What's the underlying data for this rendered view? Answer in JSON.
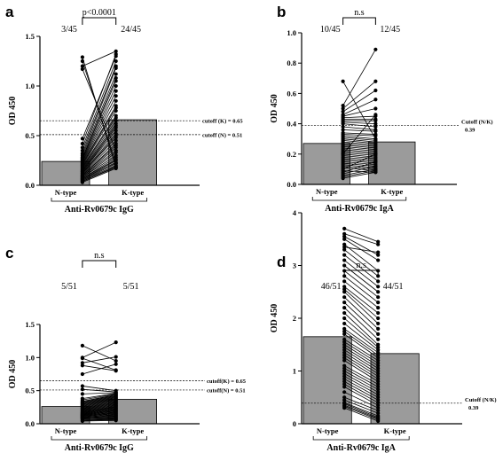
{
  "chart_data": [
    {
      "panel": "a",
      "type": "bar",
      "categories": [
        "N-type",
        "K-type"
      ],
      "values": [
        0.24,
        0.66
      ],
      "xlabel": "Anti-Rv0679c IgG",
      "ylabel": "OD 450",
      "ylim": [
        0,
        1.5
      ],
      "yticks": [
        "0.0",
        "0.5",
        "1.0",
        "1.5"
      ],
      "counts": [
        "3/45",
        "24/45"
      ],
      "significance": "p<0.0001",
      "cutoff_lines": [
        {
          "value": 0.65,
          "label": "cutoff (K) = 0.65"
        },
        {
          "value": 0.51,
          "label": "cutoff (N) = 0.51"
        }
      ],
      "pairs": [
        [
          1.29,
          0.18
        ],
        [
          1.25,
          0.22
        ],
        [
          1.2,
          1.35
        ],
        [
          1.17,
          0.35
        ],
        [
          0.47,
          1.3
        ],
        [
          0.42,
          1.32
        ],
        [
          0.38,
          1.25
        ],
        [
          0.35,
          1.2
        ],
        [
          0.32,
          1.18
        ],
        [
          0.3,
          1.12
        ],
        [
          0.28,
          1.08
        ],
        [
          0.27,
          1.05
        ],
        [
          0.26,
          1.0
        ],
        [
          0.25,
          0.95
        ],
        [
          0.24,
          0.9
        ],
        [
          0.23,
          0.85
        ],
        [
          0.22,
          0.8
        ],
        [
          0.21,
          0.78
        ],
        [
          0.2,
          0.75
        ],
        [
          0.19,
          0.7
        ],
        [
          0.18,
          0.68
        ],
        [
          0.17,
          0.65
        ],
        [
          0.16,
          0.62
        ],
        [
          0.15,
          0.6
        ],
        [
          0.14,
          0.58
        ],
        [
          0.14,
          0.55
        ],
        [
          0.13,
          0.52
        ],
        [
          0.12,
          0.5
        ],
        [
          0.12,
          0.48
        ],
        [
          0.11,
          0.45
        ],
        [
          0.1,
          0.42
        ],
        [
          0.1,
          0.4
        ],
        [
          0.09,
          0.38
        ],
        [
          0.09,
          0.35
        ],
        [
          0.08,
          0.33
        ],
        [
          0.08,
          0.3
        ],
        [
          0.07,
          0.28
        ],
        [
          0.07,
          0.26
        ],
        [
          0.06,
          0.25
        ],
        [
          0.06,
          0.23
        ],
        [
          0.05,
          0.22
        ],
        [
          0.05,
          0.2
        ],
        [
          0.04,
          0.19
        ],
        [
          0.04,
          0.18
        ],
        [
          0.03,
          0.17
        ]
      ]
    },
    {
      "panel": "b",
      "type": "bar",
      "categories": [
        "N-type",
        "K-type"
      ],
      "values": [
        0.27,
        0.28
      ],
      "xlabel": "Anti-Rv0679c IgA",
      "ylabel": "OD 450",
      "ylim": [
        0,
        1.0
      ],
      "yticks": [
        "0.0",
        "0.2",
        "0.4",
        "0.6",
        "0.8",
        "1.0"
      ],
      "counts": [
        "10/45",
        "12/45"
      ],
      "significance": "n.s",
      "cutoff_lines": [
        {
          "value": 0.39,
          "label": "Cutoff (N/K)",
          "value_label": "0.39"
        }
      ],
      "pairs": [
        [
          0.68,
          0.3
        ],
        [
          0.52,
          0.89
        ],
        [
          0.5,
          0.68
        ],
        [
          0.48,
          0.62
        ],
        [
          0.46,
          0.56
        ],
        [
          0.45,
          0.5
        ],
        [
          0.44,
          0.45
        ],
        [
          0.43,
          0.43
        ],
        [
          0.42,
          0.42
        ],
        [
          0.41,
          0.4
        ],
        [
          0.4,
          0.38
        ],
        [
          0.38,
          0.36
        ],
        [
          0.36,
          0.35
        ],
        [
          0.34,
          0.33
        ],
        [
          0.33,
          0.32
        ],
        [
          0.32,
          0.3
        ],
        [
          0.31,
          0.29
        ],
        [
          0.3,
          0.28
        ],
        [
          0.29,
          0.27
        ],
        [
          0.28,
          0.26
        ],
        [
          0.27,
          0.25
        ],
        [
          0.26,
          0.24
        ],
        [
          0.25,
          0.23
        ],
        [
          0.24,
          0.22
        ],
        [
          0.23,
          0.21
        ],
        [
          0.22,
          0.2
        ],
        [
          0.21,
          0.19
        ],
        [
          0.2,
          0.18
        ],
        [
          0.19,
          0.17
        ],
        [
          0.18,
          0.16
        ],
        [
          0.17,
          0.15
        ],
        [
          0.16,
          0.14
        ],
        [
          0.15,
          0.13
        ],
        [
          0.14,
          0.12
        ],
        [
          0.13,
          0.11
        ],
        [
          0.12,
          0.1
        ],
        [
          0.11,
          0.09
        ],
        [
          0.1,
          0.2
        ],
        [
          0.09,
          0.08
        ],
        [
          0.08,
          0.15
        ],
        [
          0.07,
          0.12
        ],
        [
          0.06,
          0.1
        ],
        [
          0.05,
          0.09
        ],
        [
          0.04,
          0.08
        ],
        [
          0.2,
          0.46
        ]
      ]
    },
    {
      "panel": "c",
      "type": "bar",
      "categories": [
        "N-type",
        "K-type"
      ],
      "values": [
        0.26,
        0.37
      ],
      "xlabel": "Anti-Rv0679c IgG",
      "ylabel": "OD 450",
      "ylim": [
        0,
        1.5
      ],
      "yticks": [
        "0.0",
        "0.5",
        "1.0",
        "1.5"
      ],
      "counts": [
        "5/51",
        "5/51"
      ],
      "significance": "n.s",
      "cutoff_lines": [
        {
          "value": 0.65,
          "label": "cutoff(K) = 0.65"
        },
        {
          "value": 0.51,
          "label": "cutoff(N) = 0.51"
        }
      ],
      "pairs": [
        [
          1.18,
          0.95
        ],
        [
          1.0,
          1.23
        ],
        [
          0.99,
          0.81
        ],
        [
          0.92,
          1.01
        ],
        [
          0.88,
          0.8
        ],
        [
          0.75,
          0.9
        ],
        [
          0.57,
          0.5
        ],
        [
          0.52,
          0.48
        ],
        [
          0.45,
          0.47
        ],
        [
          0.38,
          0.46
        ],
        [
          0.36,
          0.45
        ],
        [
          0.34,
          0.44
        ],
        [
          0.33,
          0.43
        ],
        [
          0.32,
          0.42
        ],
        [
          0.31,
          0.41
        ],
        [
          0.3,
          0.4
        ],
        [
          0.29,
          0.39
        ],
        [
          0.28,
          0.38
        ],
        [
          0.27,
          0.37
        ],
        [
          0.26,
          0.36
        ],
        [
          0.25,
          0.35
        ],
        [
          0.24,
          0.34
        ],
        [
          0.23,
          0.33
        ],
        [
          0.22,
          0.32
        ],
        [
          0.21,
          0.31
        ],
        [
          0.2,
          0.3
        ],
        [
          0.19,
          0.29
        ],
        [
          0.18,
          0.28
        ],
        [
          0.17,
          0.27
        ],
        [
          0.17,
          0.26
        ],
        [
          0.16,
          0.25
        ],
        [
          0.15,
          0.24
        ],
        [
          0.15,
          0.23
        ],
        [
          0.14,
          0.22
        ],
        [
          0.14,
          0.21
        ],
        [
          0.13,
          0.2
        ],
        [
          0.13,
          0.19
        ],
        [
          0.12,
          0.18
        ],
        [
          0.12,
          0.17
        ],
        [
          0.11,
          0.16
        ],
        [
          0.11,
          0.15
        ],
        [
          0.1,
          0.14
        ],
        [
          0.1,
          0.13
        ],
        [
          0.09,
          0.12
        ],
        [
          0.09,
          0.11
        ],
        [
          0.08,
          0.1
        ],
        [
          0.08,
          0.09
        ],
        [
          0.07,
          0.08
        ],
        [
          0.06,
          0.07
        ],
        [
          0.05,
          0.06
        ],
        [
          0.04,
          0.05
        ]
      ]
    },
    {
      "panel": "d",
      "type": "bar",
      "categories": [
        "N-type",
        "K-type"
      ],
      "values": [
        1.65,
        1.33
      ],
      "xlabel": "Anti-Rv0679c IgA",
      "ylabel": "OD 450",
      "ylim": [
        0,
        4
      ],
      "yticks": [
        "0",
        "1",
        "2",
        "3",
        "4"
      ],
      "counts": [
        "46/51",
        "44/51"
      ],
      "significance": "n.s",
      "cutoff_lines": [
        {
          "value": 0.39,
          "label": "Cutoff (N/K)",
          "value_label": "0.39"
        }
      ],
      "pairs": [
        [
          3.7,
          3.45
        ],
        [
          3.6,
          3.4
        ],
        [
          3.55,
          3.2
        ],
        [
          3.5,
          3.1
        ],
        [
          3.4,
          2.9
        ],
        [
          3.35,
          3.25
        ],
        [
          3.3,
          2.8
        ],
        [
          3.2,
          2.7
        ],
        [
          3.1,
          2.6
        ],
        [
          3.0,
          2.5
        ],
        [
          2.9,
          2.4
        ],
        [
          2.8,
          2.3
        ],
        [
          2.7,
          2.2
        ],
        [
          2.6,
          2.1
        ],
        [
          2.55,
          2.0
        ],
        [
          2.5,
          1.9
        ],
        [
          2.4,
          1.8
        ],
        [
          2.3,
          1.7
        ],
        [
          2.2,
          1.6
        ],
        [
          2.1,
          1.5
        ],
        [
          2.0,
          1.45
        ],
        [
          1.9,
          1.4
        ],
        [
          1.8,
          1.35
        ],
        [
          1.75,
          1.3
        ],
        [
          1.7,
          1.25
        ],
        [
          1.6,
          1.2
        ],
        [
          1.55,
          1.15
        ],
        [
          1.5,
          1.1
        ],
        [
          1.45,
          1.05
        ],
        [
          1.4,
          1.0
        ],
        [
          1.35,
          0.95
        ],
        [
          1.3,
          0.9
        ],
        [
          1.25,
          0.85
        ],
        [
          1.2,
          0.8
        ],
        [
          1.1,
          0.75
        ],
        [
          1.05,
          0.7
        ],
        [
          1.0,
          0.65
        ],
        [
          0.95,
          0.6
        ],
        [
          0.9,
          0.55
        ],
        [
          0.85,
          0.5
        ],
        [
          0.8,
          0.45
        ],
        [
          0.75,
          0.4
        ],
        [
          0.7,
          0.35
        ],
        [
          0.6,
          0.3
        ],
        [
          0.5,
          0.25
        ],
        [
          0.45,
          0.2
        ],
        [
          0.4,
          0.15
        ],
        [
          0.38,
          0.12
        ],
        [
          0.35,
          0.1
        ],
        [
          0.33,
          0.08
        ],
        [
          0.3,
          0.05
        ]
      ]
    }
  ]
}
